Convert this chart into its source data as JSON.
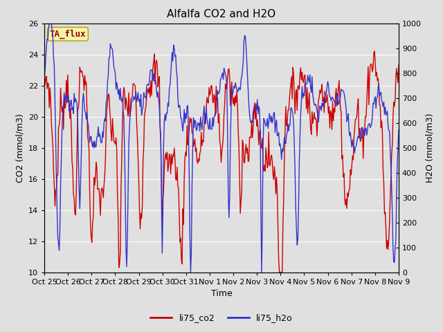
{
  "title": "Alfalfa CO2 and H2O",
  "xlabel": "Time",
  "ylabel_left": "CO2 (mmol/m3)",
  "ylabel_right": "H2O (mmol/m3)",
  "legend_label": "TA_flux",
  "series1_label": "li75_co2",
  "series2_label": "li75_h2o",
  "series1_color": "#cc0000",
  "series2_color": "#3333cc",
  "ylim_left": [
    10,
    26
  ],
  "ylim_right": [
    0,
    1000
  ],
  "yticks_left": [
    10,
    12,
    14,
    16,
    18,
    20,
    22,
    24,
    26
  ],
  "yticks_right": [
    0,
    100,
    200,
    300,
    400,
    500,
    600,
    700,
    800,
    900,
    1000
  ],
  "fig_bg_color": "#e0e0e0",
  "plot_bg_color": "#e0e0e0",
  "title_fontsize": 11,
  "axis_label_fontsize": 9,
  "tick_fontsize": 8,
  "legend_fontsize": 9,
  "linewidth": 1.0,
  "x_tick_labels": [
    "Oct 25",
    "Oct 26",
    "Oct 27",
    "Oct 28",
    "Oct 29",
    "Oct 30",
    "Oct 31",
    "Nov 1",
    "Nov 2",
    "Nov 3",
    "Nov 4",
    "Nov 5",
    "Nov 6",
    "Nov 7",
    "Nov 8",
    "Nov 9"
  ],
  "n_points": 500,
  "grid_color": "#ffffff",
  "grid_linewidth": 0.8
}
